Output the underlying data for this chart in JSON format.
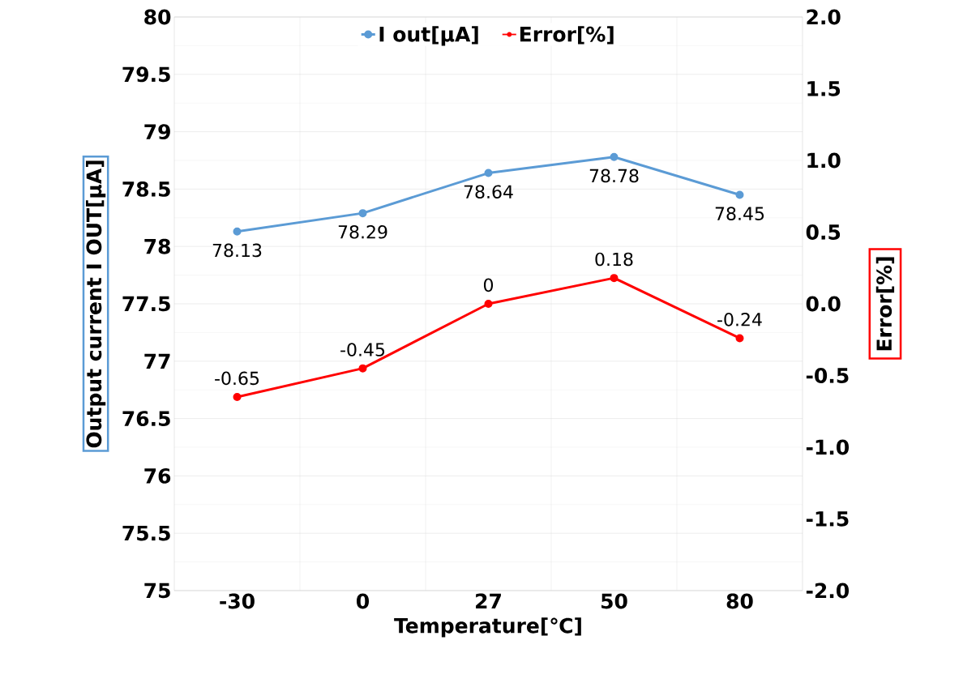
{
  "chart_data": {
    "type": "line",
    "xlabel": "Temperature[℃]",
    "ylabel": "Output current I OUT[μA]",
    "y2label": "Error[%]",
    "categories": [
      "-30",
      "0",
      "27",
      "50",
      "80"
    ],
    "series": [
      {
        "name": "I out[μA]",
        "color": "#5b9bd5",
        "values": [
          78.13,
          78.29,
          78.64,
          78.78,
          78.45
        ]
      },
      {
        "name": "Error[%]",
        "color": "#ff0000",
        "axis": "y2",
        "values": [
          -0.65,
          -0.45,
          0,
          0.18,
          -0.24
        ]
      }
    ],
    "ylim": [
      75,
      80
    ],
    "yticks": [
      75,
      75.5,
      76,
      76.5,
      77,
      77.5,
      78,
      78.5,
      79,
      79.5,
      80
    ],
    "y2lim": [
      -2,
      2
    ],
    "y2ticks": [
      {
        "value": -2,
        "label": "-2.0"
      },
      {
        "value": -1.5,
        "label": "-1.5"
      },
      {
        "value": -1,
        "label": "-1.0"
      },
      {
        "value": -0.5,
        "label": "-0.5"
      },
      {
        "value": 0,
        "label": "0.0"
      },
      {
        "value": 0.5,
        "label": "0.5"
      },
      {
        "value": 1,
        "label": "1.0"
      },
      {
        "value": 1.5,
        "label": "1.5"
      },
      {
        "value": 2,
        "label": "2.0"
      }
    ],
    "data_labels": true,
    "grid": true,
    "legend": "top",
    "marker": "circle",
    "line_style": "solid"
  }
}
